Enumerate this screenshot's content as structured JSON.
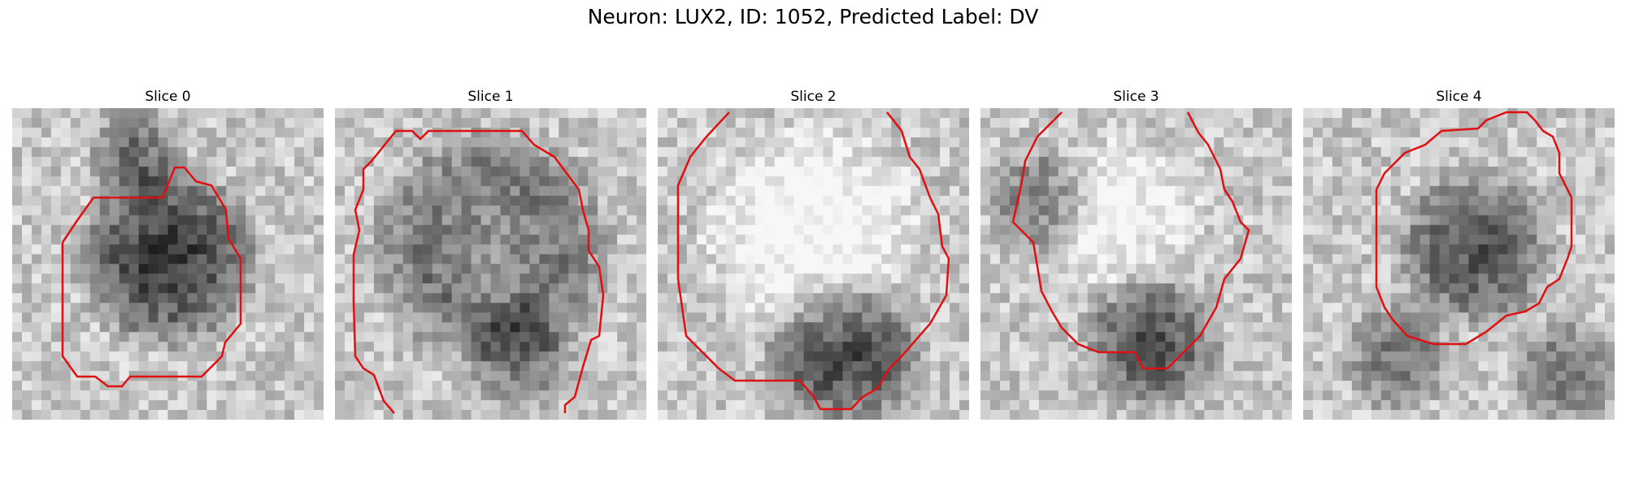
{
  "figure": {
    "title": "Neuron: LUX2, ID: 1052, Predicted Label: DV",
    "contour_color": "#e01010",
    "image_style": "grayscale pixelated microscopy crop with red contour overlay"
  },
  "panels": [
    {
      "title": "Slice 0",
      "content": "dark round cell body outlined by red contour"
    },
    {
      "title": "Slice 1",
      "content": "lighter cell interior with dark rim, red contour open at bottom"
    },
    {
      "title": "Slice 2",
      "content": "bright cell interior, dark lower region, red contour open at top"
    },
    {
      "title": "Slice 3",
      "content": "diagonal bright band, red contour open at top"
    },
    {
      "title": "Slice 4",
      "content": "textured dark center region enclosed by red contour"
    }
  ]
}
